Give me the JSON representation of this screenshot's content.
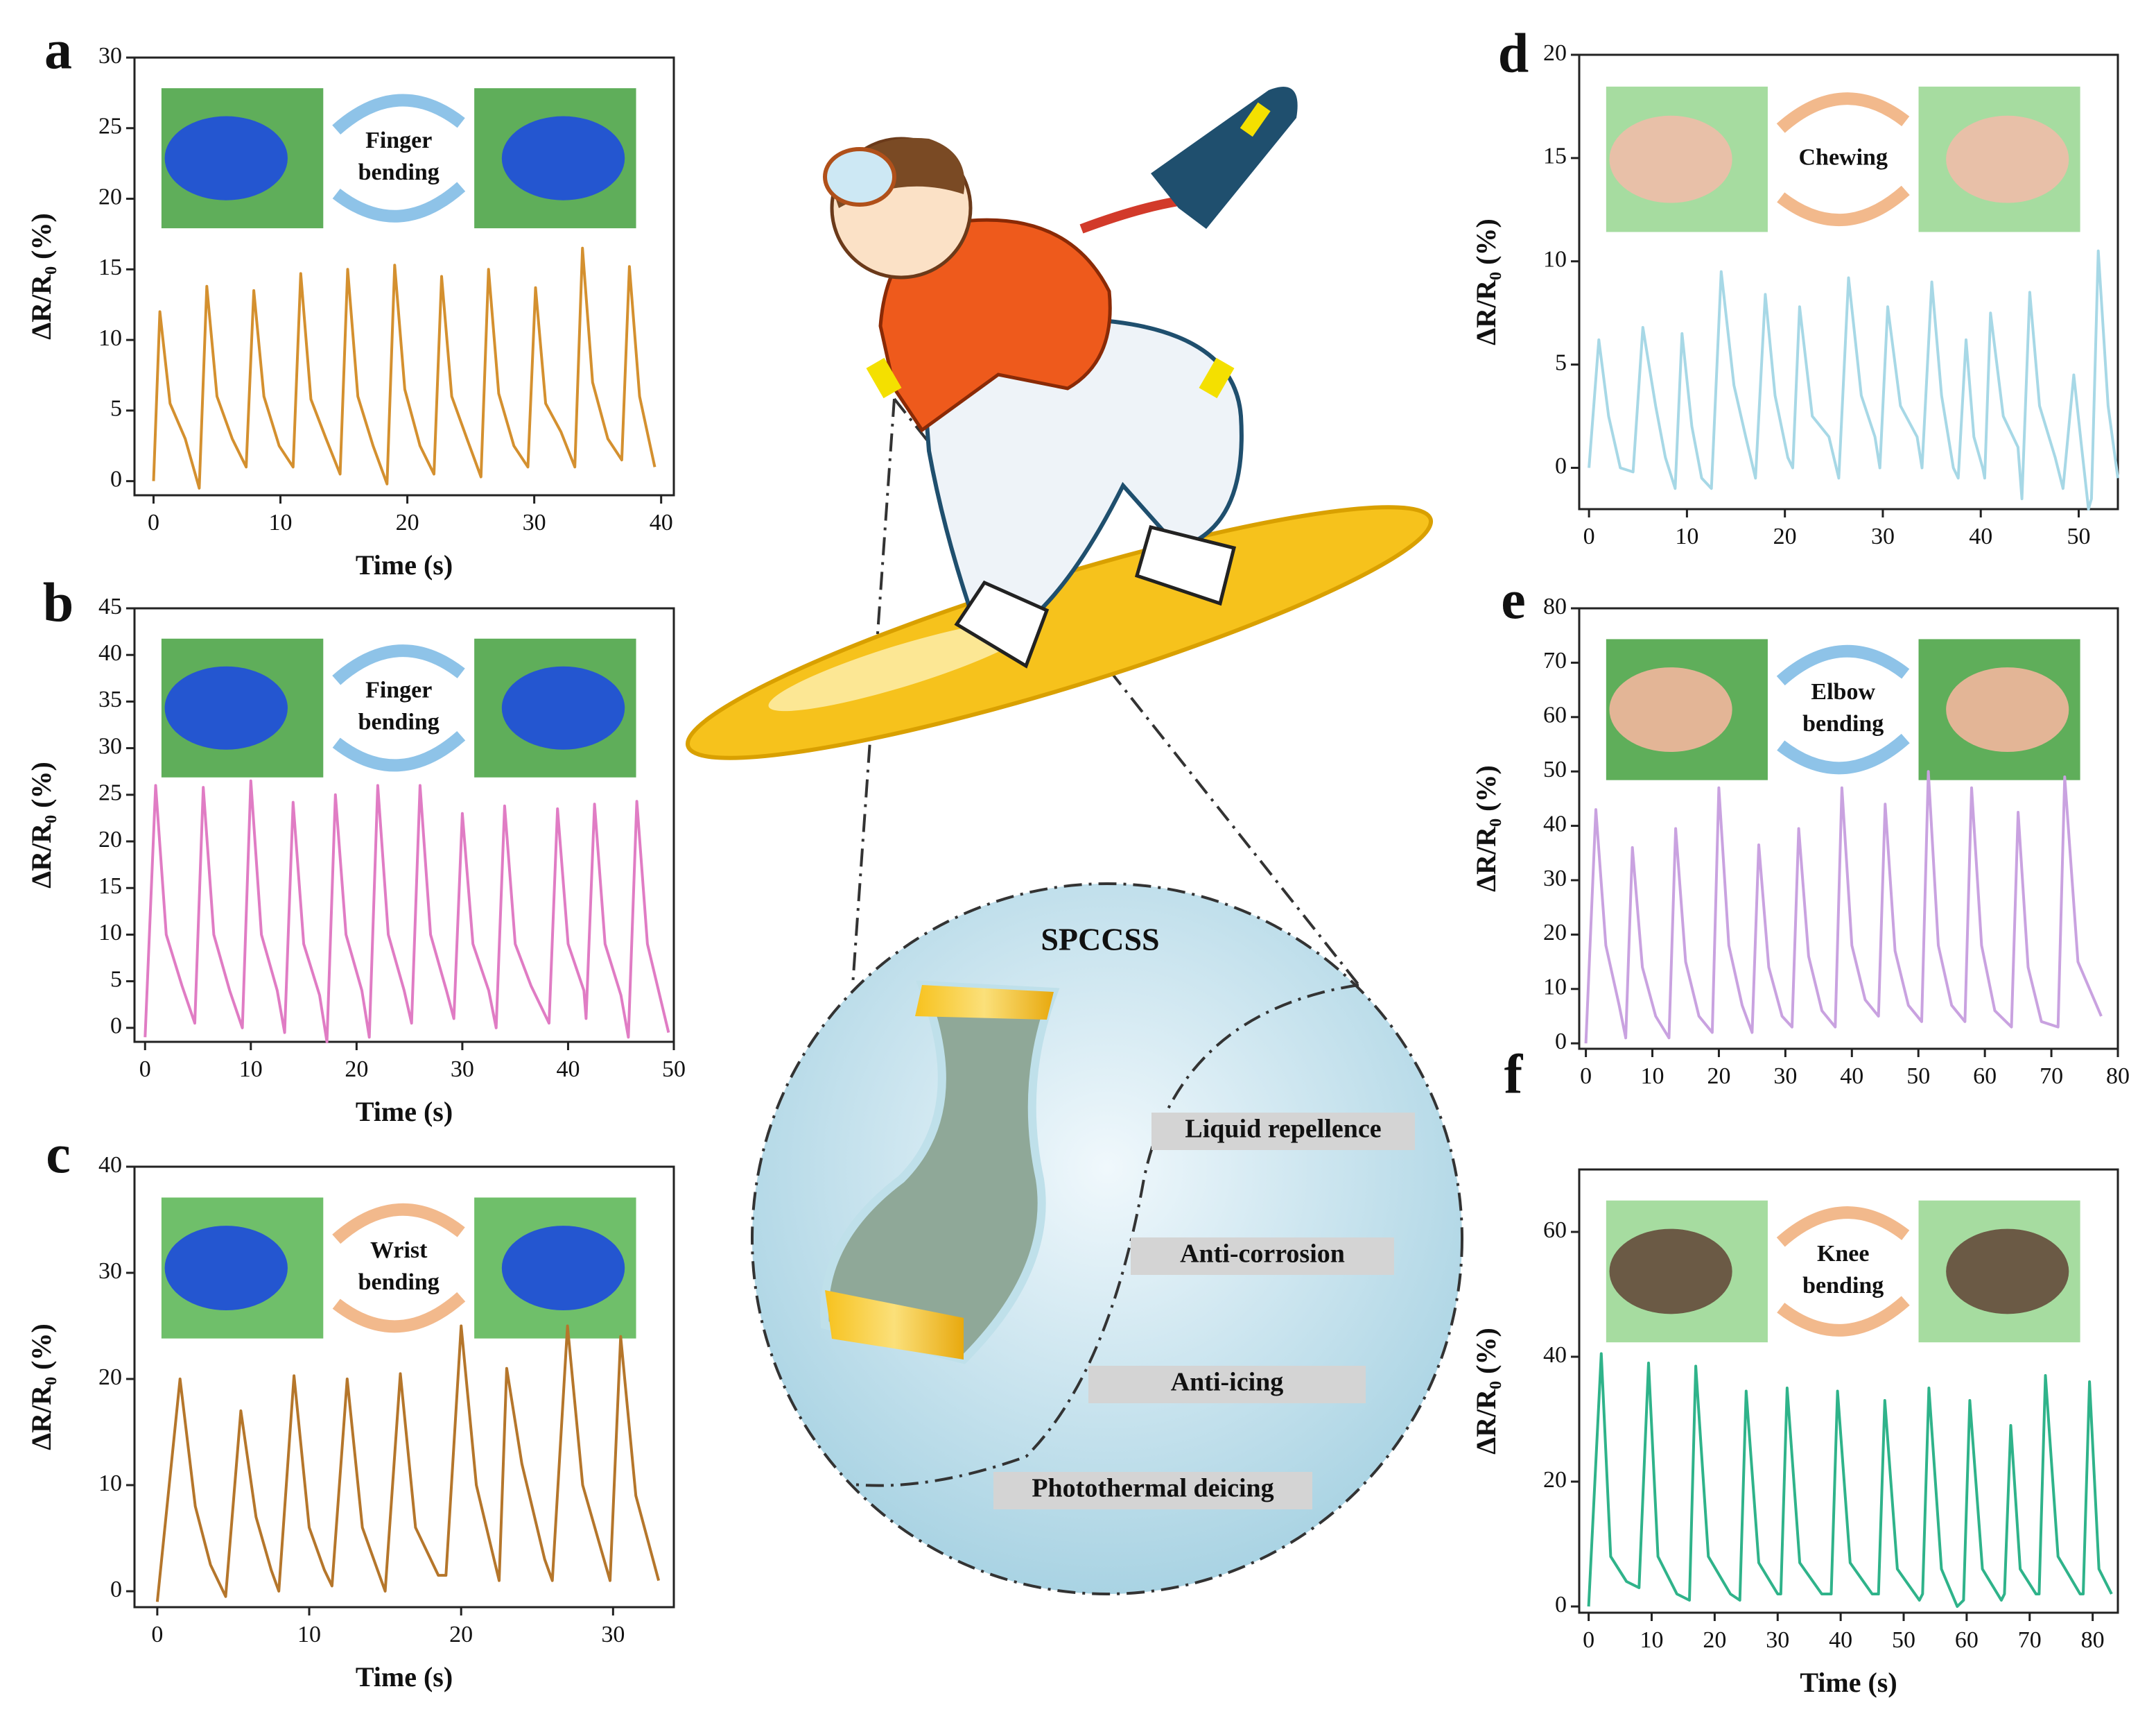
{
  "chart_data": [
    {
      "type": "line",
      "panel": "a",
      "ylabel": "ΔR/R₀ (%)",
      "xlabel": "Time (s)",
      "inset_label": [
        "Finger",
        "bending"
      ],
      "color": "#d4902f",
      "xlim": [
        -1.5,
        41
      ],
      "xticks": [
        0,
        10,
        20,
        30,
        40
      ],
      "ylim": [
        -1,
        30
      ],
      "yticks": [
        0,
        5,
        10,
        15,
        20,
        25,
        30
      ],
      "x": [
        0,
        0.5,
        1.3,
        2.5,
        3.6,
        4.2,
        5.0,
        6.2,
        7.3,
        7.9,
        8.7,
        9.9,
        11.0,
        11.6,
        12.4,
        13.6,
        14.7,
        15.3,
        16.1,
        17.3,
        18.4,
        19,
        19.8,
        21,
        22.1,
        22.7,
        23.5,
        24.7,
        25.8,
        26.4,
        27.2,
        28.4,
        29.5,
        30.1,
        30.9,
        32.1,
        33.2,
        33.8,
        34.6,
        35.8,
        36.9,
        37.5,
        38.3,
        39.5
      ],
      "values": [
        0,
        12,
        5.5,
        3,
        -0.5,
        13.8,
        6,
        3,
        1,
        13.5,
        6,
        2.5,
        1,
        14.7,
        5.8,
        3,
        0.5,
        15,
        6,
        2.5,
        -0.2,
        15.3,
        6.5,
        2.5,
        0.5,
        14.5,
        6,
        3,
        0.3,
        15,
        6.2,
        2.5,
        1,
        13.7,
        5.5,
        3.5,
        1,
        16.5,
        7,
        3,
        1.5,
        15.2,
        6,
        1
      ]
    },
    {
      "type": "line",
      "panel": "b",
      "ylabel": "ΔR/R₀ (%)",
      "xlabel": "Time (s)",
      "inset_label": [
        "Finger",
        "bending"
      ],
      "color": "#e07cc4",
      "xlim": [
        -1,
        50
      ],
      "xticks": [
        0,
        10,
        20,
        30,
        40,
        50
      ],
      "ylim": [
        -1.5,
        45
      ],
      "yticks": [
        0,
        5,
        10,
        15,
        20,
        25,
        30,
        35,
        40,
        45
      ],
      "x": [
        0,
        1,
        2,
        3.5,
        4.7,
        5.5,
        6.5,
        8,
        9.2,
        10,
        11,
        12.5,
        13.2,
        14,
        15,
        16.5,
        17.2,
        18,
        19,
        20.5,
        21.2,
        22,
        23,
        24.5,
        25.2,
        26,
        27,
        28.5,
        29.2,
        30,
        31,
        32.5,
        33.2,
        34,
        35,
        36.5,
        38.2,
        39,
        40,
        41.5,
        41.7,
        42.5,
        43.5,
        45,
        45.7,
        46.5,
        47.5,
        49.5
      ],
      "values": [
        -1,
        26,
        10,
        4.5,
        0.5,
        25.8,
        10,
        4,
        0,
        26.5,
        10,
        4,
        -0.5,
        24.2,
        9,
        3.5,
        -1.5,
        25,
        10,
        4,
        -1,
        26,
        10,
        4,
        0.5,
        26,
        10,
        4,
        1,
        23,
        9,
        4,
        0,
        23.8,
        9,
        4.5,
        0.5,
        23.5,
        9,
        4,
        1,
        24,
        9,
        3.5,
        -1,
        24.3,
        9,
        -0.5
      ]
    },
    {
      "type": "line",
      "panel": "c",
      "ylabel": "ΔR/R₀ (%)",
      "xlabel": "Time (s)",
      "inset_label": [
        "Wrist",
        "bending"
      ],
      "color": "#b5762b",
      "xlim": [
        -1.5,
        34
      ],
      "xticks": [
        0,
        10,
        20,
        30
      ],
      "ylim": [
        -1.5,
        40
      ],
      "yticks": [
        0,
        10,
        20,
        30,
        40
      ],
      "x": [
        0,
        1.5,
        2.5,
        3.5,
        4.5,
        5.5,
        6.5,
        7.5,
        8,
        9,
        10,
        11,
        11.5,
        12.5,
        13.5,
        14.5,
        15,
        16,
        17,
        18.5,
        19,
        20,
        21,
        22,
        22.5,
        23,
        24,
        25.5,
        26,
        27,
        28,
        29.2,
        29.8,
        30.5,
        31.5,
        33
      ],
      "values": [
        -1,
        20,
        8,
        2.5,
        -0.5,
        17,
        7,
        2,
        0,
        20.3,
        6,
        2,
        0.5,
        20,
        6,
        2,
        0,
        20.5,
        6,
        1.5,
        1.5,
        25,
        10,
        4,
        1,
        21,
        12,
        3,
        1,
        25,
        10,
        4,
        1,
        24,
        9,
        1
      ]
    },
    {
      "type": "line",
      "panel": "d",
      "ylabel": "ΔR/R₀ (%)",
      "xlabel": null,
      "inset_label": [
        "Chewing"
      ],
      "color": "#a7d8e6",
      "xlim": [
        -1,
        54
      ],
      "xticks": [
        0,
        10,
        20,
        30,
        40,
        50
      ],
      "ylim": [
        -2,
        20
      ],
      "yticks": [
        0,
        5,
        10,
        15,
        20
      ],
      "x": [
        0,
        1,
        2,
        3.2,
        4.5,
        5.5,
        6.8,
        7.8,
        8.8,
        9.5,
        10.5,
        11.5,
        12.5,
        13.5,
        14.8,
        16,
        17,
        18,
        19,
        20.3,
        20.8,
        21.5,
        22.8,
        24.5,
        25.5,
        26.5,
        27.8,
        29.2,
        29.7,
        30.5,
        31.8,
        33.5,
        34,
        35,
        36,
        37.2,
        37.7,
        38.5,
        39.3,
        40.2,
        40.4,
        41,
        42.3,
        43.8,
        44.2,
        45,
        46,
        47.6,
        48.4,
        49.5,
        50.3,
        51,
        51.3,
        52,
        53,
        54
      ],
      "values": [
        0,
        6.2,
        2.5,
        0,
        -0.2,
        6.8,
        3,
        0.5,
        -1,
        6.5,
        2,
        -0.5,
        -1,
        9.5,
        4,
        1.5,
        -0.5,
        8.4,
        3.5,
        0.5,
        0,
        7.8,
        2.5,
        1.5,
        -0.5,
        9.2,
        3.5,
        1.5,
        0,
        7.8,
        3,
        1.5,
        0,
        9,
        3.5,
        0,
        -0.5,
        6.2,
        1.5,
        0,
        -0.5,
        7.5,
        2.5,
        1,
        -1.5,
        8.5,
        3,
        0.5,
        -1,
        4.5,
        1,
        -2,
        -1.5,
        10.5,
        3,
        -0.5
      ]
    },
    {
      "type": "line",
      "panel": "e",
      "ylabel": "ΔR/R₀ (%)",
      "xlabel": null,
      "inset_label": [
        "Elbow",
        "bending"
      ],
      "color": "#c9a2e0",
      "xlim": [
        -1,
        80
      ],
      "xticks": [
        0,
        10,
        20,
        30,
        40,
        50,
        60,
        70,
        80
      ],
      "ylim": [
        -1,
        80
      ],
      "yticks": [
        0,
        10,
        20,
        30,
        40,
        50,
        60,
        70,
        80
      ],
      "x": [
        0,
        1.5,
        3,
        5,
        6,
        7,
        8.5,
        10.5,
        12.5,
        13.5,
        15,
        17,
        19,
        20,
        21.5,
        23.5,
        25,
        26,
        27.5,
        29.5,
        31,
        32,
        33.5,
        35.5,
        37.5,
        38.5,
        40,
        42,
        44,
        45,
        46.5,
        48.5,
        50.5,
        51.5,
        53,
        55,
        57,
        58,
        59.5,
        61.5,
        64,
        65,
        66.5,
        68.5,
        71,
        72,
        74,
        77.5
      ],
      "values": [
        0,
        43,
        18,
        7,
        1,
        36,
        14,
        5,
        1,
        39.5,
        15,
        5,
        2,
        47,
        18,
        7,
        2,
        36.5,
        14,
        5,
        3,
        39.5,
        16,
        6,
        3,
        47,
        18,
        8,
        5,
        44,
        17,
        7,
        4,
        50,
        18,
        7,
        4,
        47,
        18,
        6,
        3,
        42.5,
        14,
        4,
        3,
        49,
        15,
        5
      ]
    },
    {
      "type": "line",
      "panel": "f",
      "ylabel": "ΔR/R₀ (%)",
      "xlabel": "Time (s)",
      "inset_label": [
        "Knee",
        "bending"
      ],
      "color": "#2fb38a",
      "xlim": [
        -1.5,
        84
      ],
      "xticks": [
        0,
        10,
        20,
        30,
        40,
        50,
        60,
        70,
        80
      ],
      "ylim": [
        -1,
        70
      ],
      "yticks": [
        0,
        20,
        40,
        60
      ],
      "x": [
        0,
        2,
        3.5,
        6,
        8,
        9.5,
        11,
        14,
        16,
        17,
        19,
        22.5,
        24,
        25,
        27,
        30,
        30.5,
        31.5,
        33.5,
        37,
        38.5,
        39.5,
        41.5,
        45,
        46,
        47,
        49,
        52.5,
        53,
        54,
        56,
        58.5,
        59.5,
        60.5,
        62.5,
        65.5,
        66,
        67,
        68.5,
        71,
        71.5,
        72.5,
        74.5,
        78,
        78.5,
        79.5,
        81,
        83
      ],
      "values": [
        0,
        40.5,
        8,
        4,
        3,
        39,
        8,
        2,
        1,
        38.5,
        8,
        2,
        1,
        34.5,
        7,
        2,
        2,
        35,
        7,
        2,
        2,
        34.5,
        7,
        2,
        2,
        33,
        6,
        1,
        2,
        35,
        6,
        0,
        1,
        33,
        6,
        1,
        2,
        29,
        6,
        2,
        2,
        37,
        8,
        2,
        2,
        36,
        6,
        2
      ]
    }
  ],
  "illustration": {
    "title": "SPCCSS",
    "properties": [
      "Liquid repellence",
      "Anti-corrosion",
      "Anti-icing",
      "Photothermal deicing"
    ]
  }
}
